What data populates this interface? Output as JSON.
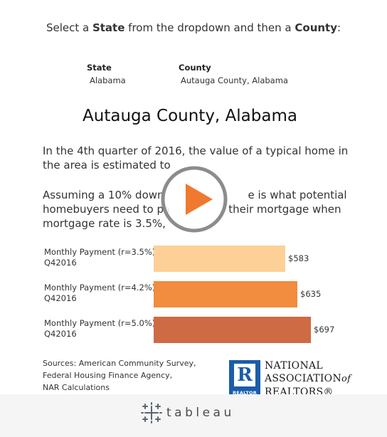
{
  "instruction": {
    "prefix": "Select a ",
    "state_word": "State",
    "middle": " from the dropdown and then a ",
    "county_word": "County",
    "suffix": ":"
  },
  "filters": {
    "state": {
      "label": "State",
      "value": "Alabama"
    },
    "county": {
      "label": "County",
      "value": "Autauga County,  Alabama"
    }
  },
  "county_title": "Autauga County,  Alabama",
  "paragraphs": {
    "p1_line1": "In the 4th quarter of 2016, the value of a typical home in",
    "p1_line2": "the area is estimated to",
    "p2_line1": "Assuming a 10% down",
    "p2_line1b": "e is what  potential",
    "p2_line2": "homebuyers need to pa",
    "p2_line2b": "their mortgage when",
    "p2_line3": "mortgage rate is 3.5%,"
  },
  "chart_data": {
    "type": "bar",
    "orientation": "horizontal",
    "categories": [
      [
        "Monthly Payment (r=3.5%)",
        "Q42016"
      ],
      [
        "Monthly Payment (r=4.2%)",
        "Q42016"
      ],
      [
        "Monthly Payment (r=5.0%)",
        "Q42016"
      ]
    ],
    "values": [
      583,
      635,
      697
    ],
    "value_labels": [
      "$583",
      "$635",
      "$697"
    ],
    "colors": [
      "#fdd097",
      "#f28c3e",
      "#ce6a44"
    ],
    "xlim": [
      0,
      800
    ],
    "grid": false
  },
  "sources": {
    "line1": "Sources: American Community Survey,",
    "line2": "Federal Housing Finance Agency,",
    "line3": "NAR Calculations"
  },
  "logo": {
    "letter": "R",
    "word": "REALTOR",
    "name_line1": "NATIONAL",
    "name_line2": "ASSOCIATION",
    "name_of": "of",
    "name_line3": "REALTORS®",
    "color": "#1a5da9"
  },
  "footer": {
    "brand": "tableau",
    "brand_icon": "tableau-logo-icon",
    "background": "#f5f5f5"
  },
  "play_button": {
    "icon": "play-icon",
    "color": "#f0792f"
  }
}
